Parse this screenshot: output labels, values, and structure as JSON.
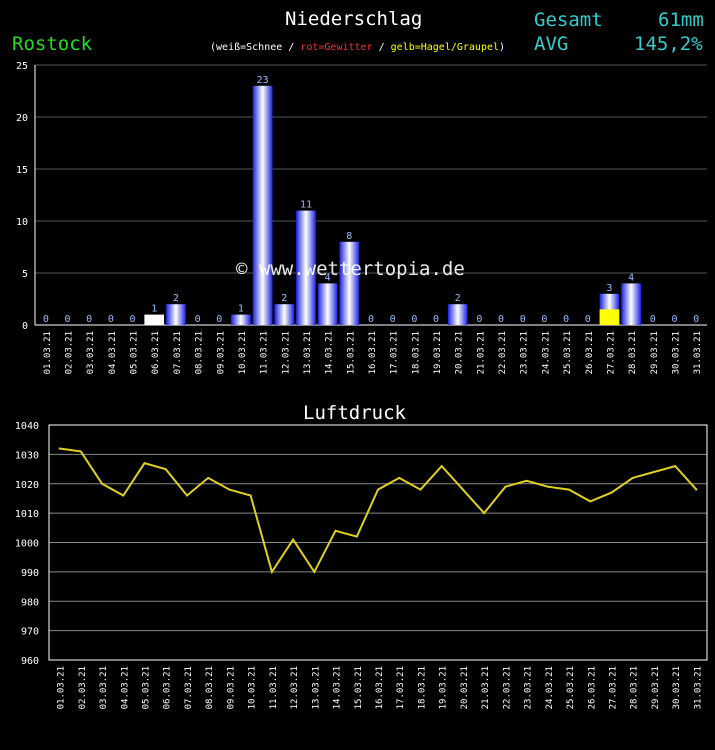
{
  "header": {
    "title": "Niederschlag",
    "station": "Rostock",
    "legend": {
      "open": "(",
      "snow": "weiß=Schnee",
      "sep1": " / ",
      "thunder": "rot=Gewitter",
      "sep2": " / ",
      "hail": "gelb=Hagel/Graupel",
      "close": ")"
    },
    "total_label": "Gesamt",
    "total_value": "61mm",
    "avg_label": "AVG",
    "avg_value": "145,2%"
  },
  "watermark": "© www.wettertopia.de",
  "pressure_title": "Luftdruck",
  "colors": {
    "rain": "#2233ff",
    "snow": "#ffffff",
    "hail": "#ffff00",
    "grid": "#555555",
    "axis": "#ffffff",
    "line": "#e0d020",
    "value_label": "#99bbff"
  },
  "chart_data": [
    {
      "type": "bar",
      "title": "Niederschlag",
      "categories": [
        "01.03.21",
        "02.03.21",
        "03.03.21",
        "04.03.21",
        "05.03.21",
        "06.03.21",
        "07.03.21",
        "08.03.21",
        "09.03.21",
        "10.03.21",
        "11.03.21",
        "12.03.21",
        "13.03.21",
        "14.03.21",
        "15.03.21",
        "16.03.21",
        "17.03.21",
        "18.03.21",
        "19.03.21",
        "20.03.21",
        "21.03.21",
        "22.03.21",
        "23.03.21",
        "24.03.21",
        "25.03.21",
        "26.03.21",
        "27.03.21",
        "28.03.21",
        "29.03.21",
        "30.03.21",
        "31.03.21"
      ],
      "values": [
        0,
        0,
        0,
        0,
        0,
        1,
        2,
        0,
        0,
        1,
        23,
        2,
        11,
        4,
        8,
        0,
        0,
        0,
        0,
        2,
        0,
        0,
        0,
        0,
        0,
        0,
        3,
        4,
        0,
        0,
        0
      ],
      "value_labels": [
        "0",
        "0",
        "0",
        "0",
        "0",
        "1",
        "2",
        "0",
        "0",
        "1",
        "23",
        "2",
        "11",
        "4",
        "8",
        "0",
        "0",
        "0",
        "0",
        "2",
        "0",
        "0",
        "0",
        "0",
        "0",
        "0",
        "3",
        "4",
        "0",
        "0",
        "0"
      ],
      "snow": [
        0,
        0,
        0,
        0,
        0,
        1,
        0,
        0,
        0,
        0,
        0,
        0,
        0,
        0,
        0,
        0,
        0,
        0,
        0,
        0,
        0,
        0,
        0,
        0,
        0,
        0,
        0,
        0,
        0,
        0,
        0
      ],
      "hail": [
        0,
        0,
        0,
        0,
        0,
        0,
        0,
        0,
        0,
        0,
        0,
        0,
        0,
        0,
        0,
        0,
        0,
        0,
        0,
        0,
        0,
        0,
        0,
        0,
        0,
        0,
        1.5,
        0,
        0,
        0,
        0
      ],
      "ylim": [
        0,
        25
      ],
      "yticks": [
        0,
        5,
        10,
        15,
        20,
        25
      ],
      "ytick_labels": [
        "0",
        "5",
        "10",
        "15",
        "20",
        "25"
      ],
      "grid": true
    },
    {
      "type": "line",
      "title": "Luftdruck",
      "categories": [
        "01.03.21",
        "02.03.21",
        "03.03.21",
        "04.03.21",
        "05.03.21",
        "06.03.21",
        "07.03.21",
        "08.03.21",
        "09.03.21",
        "10.03.21",
        "11.03.21",
        "12.03.21",
        "13.03.21",
        "14.03.21",
        "15.03.21",
        "16.03.21",
        "17.03.21",
        "18.03.21",
        "19.03.21",
        "20.03.21",
        "21.03.21",
        "22.03.21",
        "23.03.21",
        "24.03.21",
        "25.03.21",
        "26.03.21",
        "27.03.21",
        "28.03.21",
        "29.03.21",
        "30.03.21",
        "31.03.21"
      ],
      "values": [
        1032,
        1031,
        1020,
        1016,
        1027,
        1025,
        1016,
        1022,
        1018,
        1016,
        990,
        1001,
        990,
        1004,
        1002,
        1018,
        1022,
        1018,
        1026,
        1018,
        1010,
        1019,
        1021,
        1019,
        1018,
        1014,
        1017,
        1022,
        1024,
        1026,
        1018
      ],
      "ylim": [
        960,
        1040
      ],
      "yticks": [
        960,
        970,
        980,
        990,
        1000,
        1010,
        1020,
        1030,
        1040
      ],
      "ytick_labels": [
        "960",
        "970",
        "980",
        "990",
        "1000",
        "1010",
        "1020",
        "1030",
        "1040"
      ],
      "grid": true
    }
  ]
}
